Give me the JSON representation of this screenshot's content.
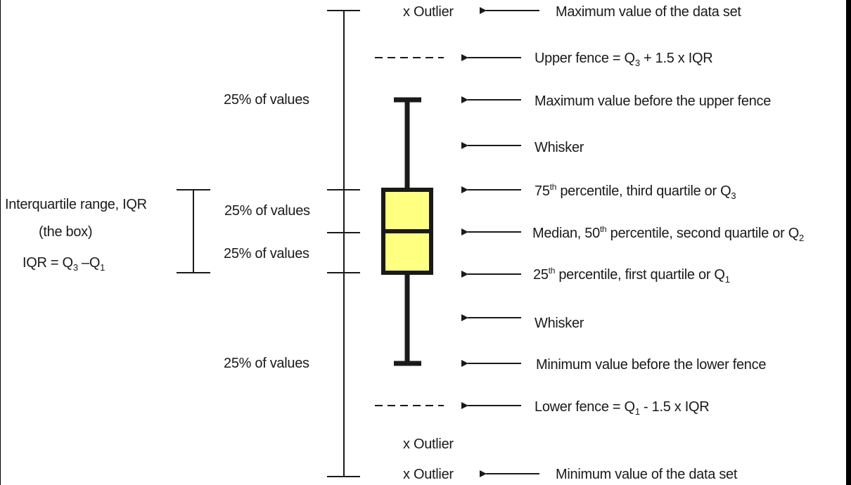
{
  "colors": {
    "background": "#ffffff",
    "ink": "#1a1a1a",
    "box_fill": "#ffff80"
  },
  "left_labels": {
    "iqr_title": "Interquartile range, IQR",
    "iqr_box_note": "(the box)",
    "iqr_formula_pre": "IQR = Q",
    "iqr_formula_sub1": "3",
    "iqr_formula_mid": " –Q",
    "iqr_formula_sub2": "1"
  },
  "quarter_labels": [
    "25% of values",
    "25% of values",
    "25% of values",
    "25% of values"
  ],
  "outliers": [
    "x  Outlier",
    "x  Outlier",
    "x  Outlier"
  ],
  "annotations": {
    "max_data": "Maximum value of the data set",
    "upper_fence_pre": "Upper fence = Q",
    "upper_fence_sub": "3",
    "upper_fence_post": " + 1.5 x IQR",
    "max_before_fence": "Maximum value before the upper fence",
    "whisker_upper": "Whisker",
    "p75_pre": "75",
    "p75_sup": "th",
    "p75_post": " percentile, third quartile or Q",
    "p75_sub": "3",
    "median_pre": "Median, 50",
    "median_sup": "th",
    "median_post": " percentile, second quartile or Q",
    "median_sub": "2",
    "p25_pre": "25",
    "p25_sup": "th",
    "p25_post": " percentile, first quartile or Q",
    "p25_sub": "1",
    "whisker_lower": "Whisker",
    "min_before_fence": "Minimum value before the lower fence",
    "lower_fence_pre": "Lower fence = Q",
    "lower_fence_sub": "1",
    "lower_fence_post": " - 1.5 x IQR",
    "min_data": "Minimum value of the data set"
  }
}
